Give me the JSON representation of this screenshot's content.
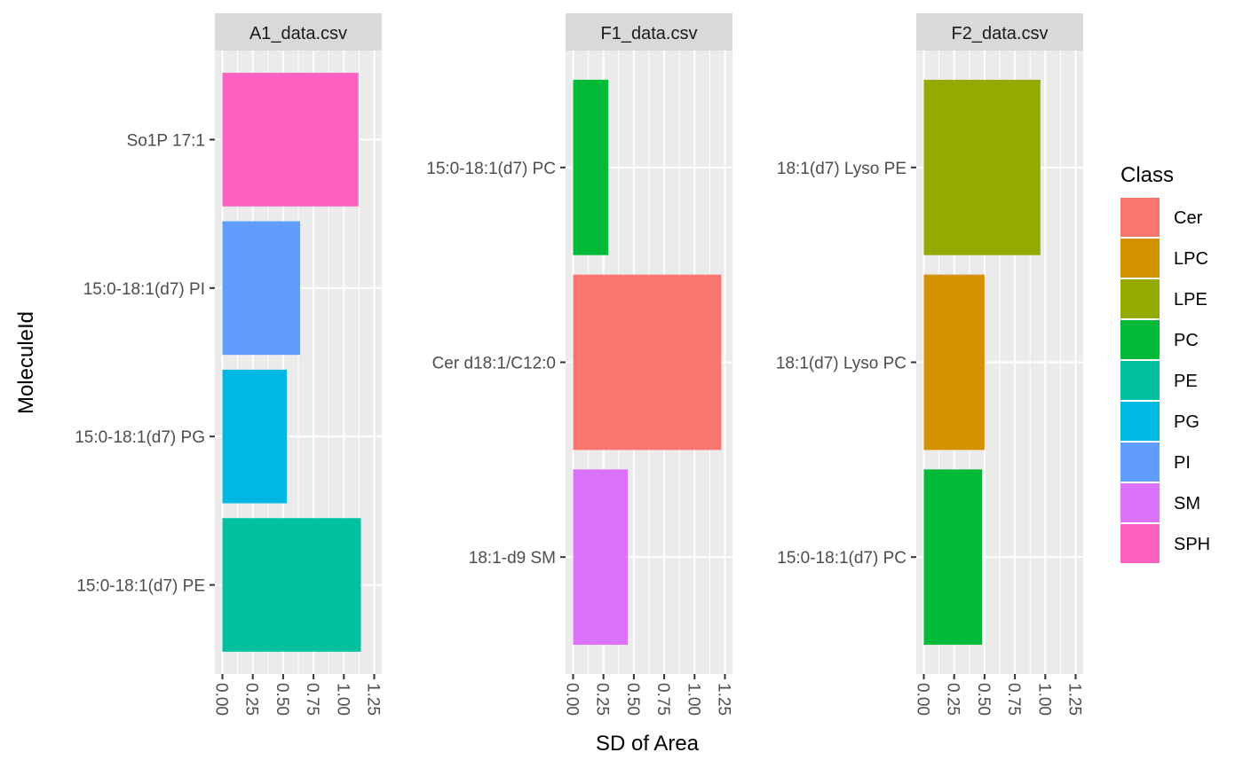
{
  "chart_data": {
    "type": "bar",
    "orientation": "horizontal",
    "xlabel": "SD of Area",
    "ylabel": "MoleculeId",
    "xlim": [
      0,
      1.25
    ],
    "x_ticks": [
      "0.00",
      "0.25",
      "0.50",
      "0.75",
      "1.00",
      "1.25"
    ],
    "x_tick_values": [
      0,
      0.25,
      0.5,
      0.75,
      1.0,
      1.25
    ],
    "grid": true,
    "facets": [
      {
        "title": "A1_data.csv",
        "bars": [
          {
            "label": "So1P 17:1",
            "value": 1.12,
            "class": "SPH"
          },
          {
            "label": "15:0-18:1(d7) PI",
            "value": 0.64,
            "class": "PI"
          },
          {
            "label": "15:0-18:1(d7) PG",
            "value": 0.53,
            "class": "PG"
          },
          {
            "label": "15:0-18:1(d7) PE",
            "value": 1.14,
            "class": "PE"
          }
        ]
      },
      {
        "title": "F1_data.csv",
        "bars": [
          {
            "label": "15:0-18:1(d7) PC",
            "value": 0.29,
            "class": "PC"
          },
          {
            "label": "Cer d18:1/C12:0",
            "value": 1.22,
            "class": "Cer"
          },
          {
            "label": "18:1-d9 SM",
            "value": 0.45,
            "class": "SM"
          }
        ]
      },
      {
        "title": "F2_data.csv",
        "bars": [
          {
            "label": "18:1(d7) Lyso PE",
            "value": 0.96,
            "class": "LPE"
          },
          {
            "label": "18:1(d7) Lyso PC",
            "value": 0.5,
            "class": "LPC"
          },
          {
            "label": "15:0-18:1(d7) PC",
            "value": 0.48,
            "class": "PC"
          }
        ]
      }
    ],
    "legend": {
      "title": "Class",
      "placement": "right",
      "items": [
        {
          "name": "Cer",
          "color": "#F8766D"
        },
        {
          "name": "LPC",
          "color": "#D39200"
        },
        {
          "name": "LPE",
          "color": "#93AA00"
        },
        {
          "name": "PC",
          "color": "#00BA38"
        },
        {
          "name": "PE",
          "color": "#00C19F"
        },
        {
          "name": "PG",
          "color": "#00B9E3"
        },
        {
          "name": "PI",
          "color": "#619CFF"
        },
        {
          "name": "SM",
          "color": "#DB72FB"
        },
        {
          "name": "SPH",
          "color": "#FF61C3"
        }
      ]
    }
  }
}
